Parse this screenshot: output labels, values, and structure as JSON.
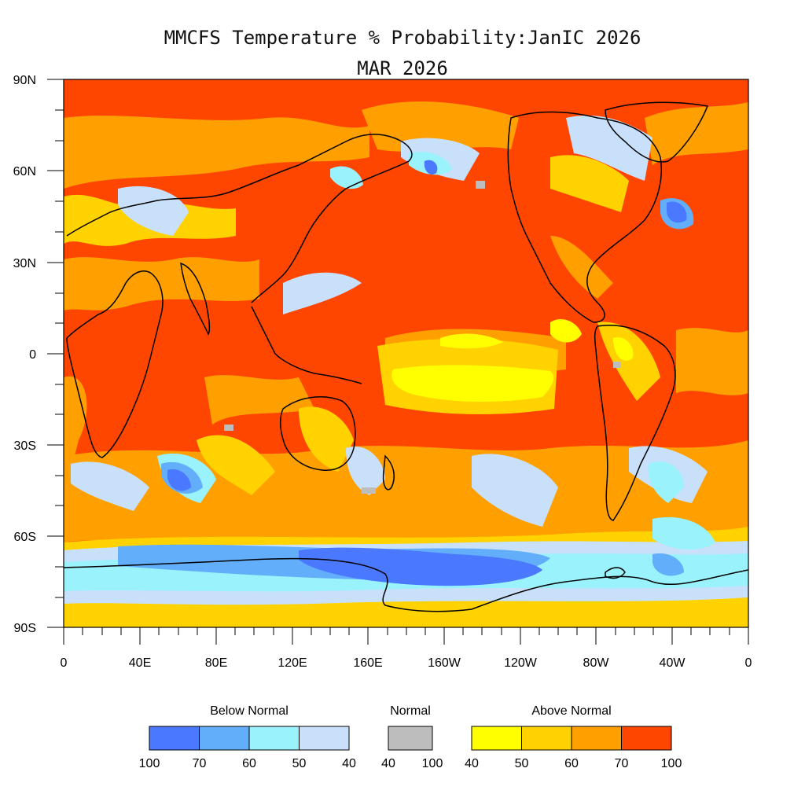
{
  "title": {
    "line1": "MMCFS Temperature % Probability:JanIC 2026",
    "line2": "MAR 2026"
  },
  "axes": {
    "lat_ticks": [
      "90N",
      "60N",
      "30N",
      "0",
      "30S",
      "60S",
      "90S"
    ],
    "lon_ticks": [
      "0",
      "40E",
      "80E",
      "120E",
      "160E",
      "160W",
      "120W",
      "80W",
      "40W",
      "0"
    ]
  },
  "colors": {
    "below_100_70": "#4a78ff",
    "below_70_60": "#62aefa",
    "below_60_50": "#9af2fc",
    "below_50_40": "#c8e0fa",
    "normal": "#bdbdbd",
    "above_40_50": "#ffff00",
    "above_50_60": "#ffd200",
    "above_60_70": "#ffa000",
    "above_70_100": "#ff4600"
  },
  "legend": {
    "below": {
      "label": "Below Normal",
      "ticks": [
        "100",
        "70",
        "60",
        "50",
        "40"
      ]
    },
    "normal": {
      "label": "Normal",
      "ticks": [
        "40",
        "100"
      ]
    },
    "above": {
      "label": "Above Normal",
      "ticks": [
        "40",
        "50",
        "60",
        "70",
        "100"
      ]
    }
  }
}
